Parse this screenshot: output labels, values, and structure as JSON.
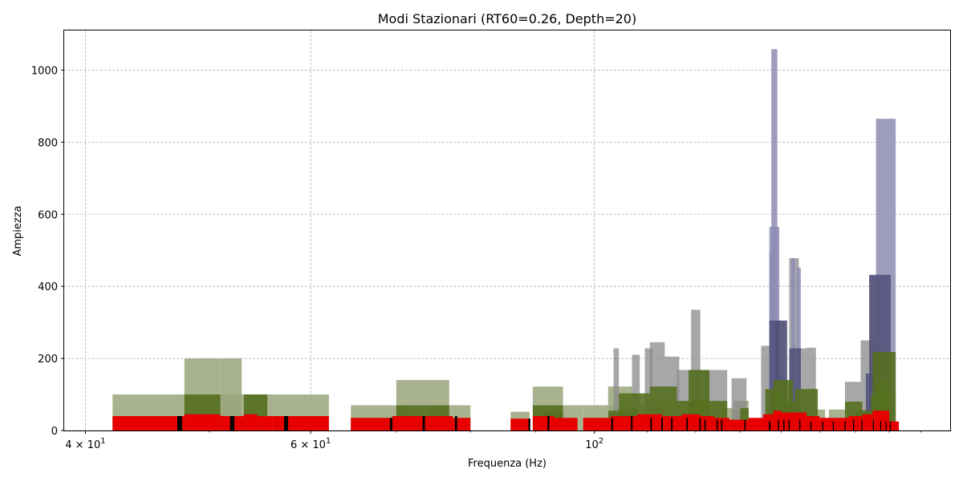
{
  "chart_data": {
    "type": "bar",
    "title": "Modi Stazionari (RT60=0.26, Depth=20)",
    "xlabel": "Frequenza (Hz)",
    "ylabel": "Ampiezza",
    "xscale": "log",
    "xlim": [
      38.5,
      190
    ],
    "ylim": [
      0,
      1110
    ],
    "grid": true,
    "x_ticks": [
      {
        "value": 40,
        "label": "4 × 10",
        "exp": "1"
      },
      {
        "value": 60,
        "label": "6 × 10",
        "exp": "1"
      },
      {
        "value": 100,
        "label": "10",
        "exp": "2"
      }
    ],
    "y_ticks": [
      0,
      200,
      400,
      600,
      800,
      1000
    ],
    "colors": {
      "olive_light": "#9aa57a",
      "olive_dark": "#55701f",
      "gray": "#8a8a8a",
      "lavender": "#8e8cb3",
      "slate": "#50507a",
      "red": "#e60000",
      "black": "#000000"
    },
    "series": [
      {
        "color_key": "olive_light",
        "bars": [
          [
            42.0,
            51.0,
            100
          ],
          [
            47.8,
            55.5,
            100
          ],
          [
            51.0,
            53.0,
            200
          ],
          [
            53.2,
            55.5,
            100
          ],
          [
            55.5,
            62.0,
            100
          ],
          [
            64.5,
            71.5,
            70
          ],
          [
            74.0,
            80.0,
            70
          ],
          [
            86.0,
            89.0,
            52
          ],
          [
            89.5,
            98.0,
            70
          ],
          [
            98.0,
            102.5,
            70
          ],
          [
            102.5,
            108.0,
            70
          ],
          [
            108.5,
            114.0,
            70
          ],
          [
            125.5,
            128.5,
            62
          ],
          [
            128.5,
            132.0,
            55
          ],
          [
            136.0,
            140.0,
            62
          ],
          [
            148.0,
            151.5,
            58
          ],
          [
            152.5,
            157.0,
            58
          ],
          [
            162.0,
            167.5,
            58
          ]
        ]
      },
      {
        "color_key": "olive_light",
        "bars": [
          [
            47.8,
            51.0,
            200
          ],
          [
            70.0,
            77.0,
            140
          ],
          [
            89.5,
            94.5,
            122
          ],
          [
            102.5,
            107.0,
            122
          ],
          [
            110.0,
            116.0,
            82
          ],
          [
            117.0,
            123.0,
            82
          ],
          [
            123.0,
            127.0,
            50
          ],
          [
            128.5,
            132.0,
            82
          ],
          [
            163.0,
            167.5,
            80
          ],
          [
            167.5,
            172.0,
            110
          ]
        ]
      },
      {
        "color_key": "gray",
        "bars": [
          [
            103.5,
            104.5,
            228
          ],
          [
            107.0,
            108.5,
            210
          ],
          [
            109.5,
            111.0,
            228
          ],
          [
            110.5,
            113.5,
            245
          ],
          [
            113.5,
            116.5,
            205
          ],
          [
            116.0,
            120.5,
            168
          ],
          [
            118.5,
            123.0,
            168
          ],
          [
            119.0,
            121.0,
            335
          ],
          [
            122.0,
            127.0,
            168
          ],
          [
            128.0,
            131.5,
            145
          ],
          [
            135.0,
            138.0,
            235
          ],
          [
            139.0,
            141.0,
            305
          ],
          [
            142.0,
            144.5,
            478
          ],
          [
            144.0,
            146.5,
            228
          ],
          [
            146.5,
            149.0,
            230
          ],
          [
            145.5,
            149.0,
            115
          ],
          [
            157.0,
            161.5,
            135
          ],
          [
            161.5,
            166.0,
            250
          ],
          [
            164.0,
            167.0,
            430
          ],
          [
            169.0,
            172.0,
            110
          ]
        ]
      },
      {
        "color_key": "lavender",
        "bars": [
          [
            137.0,
            138.5,
            492
          ],
          [
            137.5,
            139.0,
            1058
          ],
          [
            137.0,
            139.5,
            565
          ],
          [
            142.5,
            143.5,
            478
          ],
          [
            144.0,
            145.0,
            452
          ],
          [
            166.0,
            172.0,
            865
          ]
        ]
      },
      {
        "color_key": "slate",
        "bars": [
          [
            137.0,
            139.5,
            305
          ],
          [
            138.5,
            141.5,
            305
          ],
          [
            142.0,
            145.0,
            228
          ],
          [
            164.0,
            170.5,
            432
          ],
          [
            165.0,
            170.0,
            218
          ],
          [
            163.0,
            167.0,
            158
          ]
        ]
      },
      {
        "color_key": "olive_dark",
        "bars": [
          [
            47.8,
            51.0,
            100
          ],
          [
            53.2,
            55.5,
            100
          ],
          [
            70.0,
            74.0,
            70
          ],
          [
            74.0,
            77.0,
            70
          ],
          [
            89.5,
            94.5,
            70
          ],
          [
            91.0,
            94.5,
            50
          ],
          [
            102.5,
            108.0,
            55
          ],
          [
            104.5,
            110.5,
            103
          ],
          [
            110.5,
            116.0,
            122
          ],
          [
            116.0,
            123.0,
            82
          ],
          [
            118.5,
            123.0,
            168
          ],
          [
            122.0,
            127.0,
            82
          ],
          [
            130.0,
            132.0,
            62
          ],
          [
            136.0,
            140.0,
            115
          ],
          [
            138.0,
            143.0,
            140
          ],
          [
            140.0,
            144.0,
            80
          ],
          [
            143.5,
            149.5,
            115
          ],
          [
            157.0,
            162.0,
            80
          ],
          [
            160.0,
            165.0,
            55
          ],
          [
            164.5,
            170.5,
            100
          ],
          [
            165.0,
            172.0,
            218
          ],
          [
            166.0,
            170.0,
            140
          ]
        ]
      },
      {
        "color_key": "red",
        "bars": [
          [
            42.0,
            47.8,
            40
          ],
          [
            47.8,
            51.0,
            45
          ],
          [
            51.0,
            53.2,
            40
          ],
          [
            53.2,
            54.5,
            45
          ],
          [
            54.5,
            56.0,
            40
          ],
          [
            56.0,
            62.0,
            40
          ],
          [
            64.5,
            69.5,
            35
          ],
          [
            69.5,
            74.0,
            40
          ],
          [
            74.0,
            77.5,
            40
          ],
          [
            77.5,
            80.0,
            35
          ],
          [
            86.0,
            89.0,
            33
          ],
          [
            89.5,
            93.0,
            40
          ],
          [
            93.0,
            97.0,
            35
          ],
          [
            98.0,
            103.0,
            35
          ],
          [
            103.0,
            108.0,
            40
          ],
          [
            108.0,
            113.0,
            45
          ],
          [
            113.0,
            117.0,
            40
          ],
          [
            117.0,
            121.0,
            45
          ],
          [
            121.0,
            124.0,
            40
          ],
          [
            124.0,
            127.5,
            35
          ],
          [
            127.5,
            132.0,
            30
          ],
          [
            132.0,
            135.5,
            35
          ],
          [
            135.5,
            138.0,
            45
          ],
          [
            138.0,
            140.0,
            55
          ],
          [
            140.0,
            143.0,
            50
          ],
          [
            143.0,
            146.5,
            50
          ],
          [
            146.5,
            150.0,
            40
          ],
          [
            150.0,
            154.0,
            35
          ],
          [
            154.0,
            158.0,
            35
          ],
          [
            158.0,
            162.0,
            40
          ],
          [
            162.0,
            165.0,
            45
          ],
          [
            165.0,
            170.0,
            55
          ],
          [
            170.0,
            173.0,
            25
          ]
        ]
      },
      {
        "color_key": "black",
        "bars": [
          [
            47.2,
            47.6,
            40
          ],
          [
            51.9,
            52.3,
            40
          ],
          [
            57.2,
            57.6,
            40
          ],
          [
            69.2,
            69.5,
            35
          ],
          [
            73.4,
            73.7,
            40
          ],
          [
            77.8,
            78.1,
            40
          ],
          [
            88.8,
            89.1,
            33
          ],
          [
            91.9,
            92.2,
            40
          ],
          [
            103.1,
            103.4,
            35
          ],
          [
            106.8,
            107.1,
            40
          ],
          [
            110.6,
            110.9,
            35
          ],
          [
            112.8,
            113.1,
            35
          ],
          [
            114.8,
            115.1,
            35
          ],
          [
            118.0,
            118.3,
            35
          ],
          [
            120.8,
            121.1,
            35
          ],
          [
            121.9,
            122.2,
            30
          ],
          [
            124.6,
            124.9,
            30
          ],
          [
            125.6,
            125.9,
            30
          ],
          [
            131.0,
            131.3,
            30
          ],
          [
            136.9,
            137.3,
            25
          ],
          [
            139.1,
            139.4,
            30
          ],
          [
            140.5,
            140.8,
            30
          ],
          [
            141.8,
            142.1,
            30
          ],
          [
            144.6,
            144.9,
            30
          ],
          [
            147.5,
            147.8,
            25
          ],
          [
            150.7,
            151.0,
            25
          ],
          [
            153.6,
            153.9,
            25
          ],
          [
            156.9,
            157.2,
            25
          ],
          [
            159.3,
            159.6,
            30
          ],
          [
            161.7,
            162.0,
            30
          ],
          [
            165.1,
            165.4,
            30
          ],
          [
            167.3,
            167.6,
            25
          ],
          [
            168.9,
            169.2,
            25
          ],
          [
            170.2,
            170.5,
            25
          ]
        ]
      }
    ]
  }
}
